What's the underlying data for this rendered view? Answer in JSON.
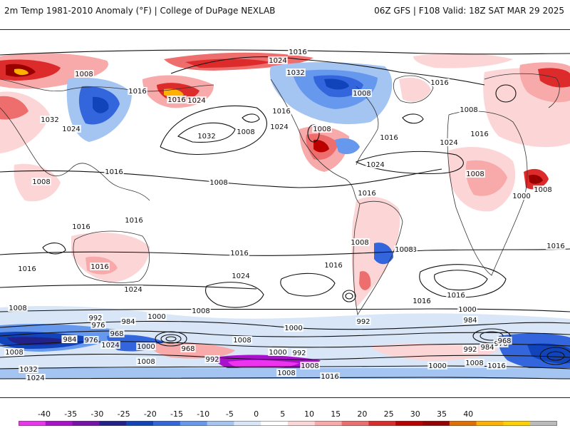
{
  "header": {
    "title_left": "2m Temp 1981-2010 Anomaly (°F) | College of DuPage NEXLAB",
    "title_right": "06Z GFS | F108 Valid: 18Z SAT MAR 29 2025"
  },
  "colorbar": {
    "ticks": [
      "-40",
      "-35",
      "-30",
      "-25",
      "-20",
      "-15",
      "-10",
      "-5",
      "0",
      "5",
      "10",
      "15",
      "20",
      "25",
      "30",
      "35",
      "40"
    ],
    "colors": [
      "#ee33ee",
      "#aa11cc",
      "#7711aa",
      "#22228a",
      "#1144bb",
      "#3366dd",
      "#6699ee",
      "#a4c4f2",
      "#d8e6f8",
      "#ffffff",
      "#fcd6d6",
      "#f8a9a9",
      "#ee6e6e",
      "#dd2b2b",
      "#bb0000",
      "#990000",
      "#e06f00",
      "#ffb000",
      "#ffd000",
      "#bbbbbb"
    ]
  },
  "isobar_labels": [
    "1016",
    "1024",
    "1032",
    "1008",
    "1016",
    "1016",
    "1024",
    "1032",
    "1024",
    "1016",
    "1016",
    "1008",
    "1008",
    "1032",
    "1024",
    "1024",
    "1016",
    "1008",
    "1016",
    "1008",
    "1024",
    "1016",
    "1008",
    "1008",
    "1016",
    "1016",
    "1016",
    "1016",
    "1024",
    "1008",
    "1008",
    "1000",
    "1008",
    "1016",
    "1016",
    "1016",
    "1016",
    "1016",
    "1024",
    "1008",
    "1008",
    "1000",
    "992",
    "976",
    "968",
    "984",
    "984",
    "976",
    "1024",
    "1000",
    "968",
    "992",
    "1008",
    "1008",
    "1000",
    "992",
    "984",
    "1000",
    "1008",
    "1016",
    "1000",
    "992",
    "984",
    "976",
    "968",
    "1008",
    "1016",
    "1032",
    "1024",
    "1008",
    "984",
    "992",
    "1008",
    "1000",
    "1008",
    "1016",
    "1008",
    "1008"
  ]
}
